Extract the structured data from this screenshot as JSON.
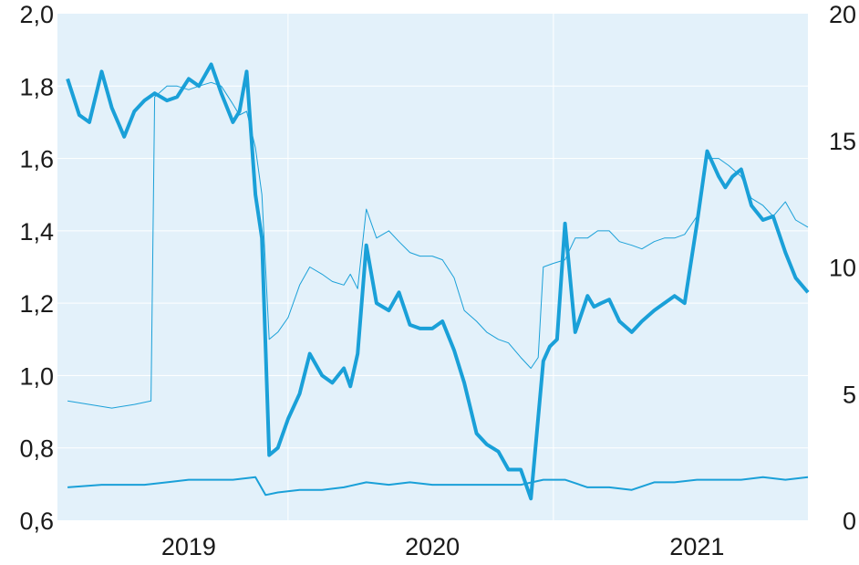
{
  "chart_data": {
    "type": "line",
    "title": "",
    "xlabel": "",
    "ylabel_left": "",
    "ylabel_right": "",
    "x_ticks": [
      "2019",
      "2020",
      "2021"
    ],
    "x_range": [
      "2018-11",
      "2021-09"
    ],
    "y_left": {
      "range": [
        0.6,
        2.0
      ],
      "ticks": [
        "2,0",
        "1,8",
        "1,6",
        "1,4",
        "1,2",
        "1,0",
        "0,8",
        "0,6"
      ]
    },
    "y_right": {
      "range": [
        0,
        20
      ],
      "ticks": [
        "20",
        "15",
        "10",
        "5",
        "0"
      ]
    },
    "grid": true,
    "background": "#e3f1fa",
    "series": [
      {
        "axis": "left",
        "color": "#1aa0d8",
        "width": 4,
        "x": [
          "2018-11-15",
          "2018-12-01",
          "2018-12-15",
          "2019-01-01",
          "2019-01-15",
          "2019-02-01",
          "2019-02-15",
          "2019-03-01",
          "2019-03-15",
          "2019-04-01",
          "2019-04-15",
          "2019-05-01",
          "2019-05-15",
          "2019-06-01",
          "2019-06-15",
          "2019-07-01",
          "2019-07-10",
          "2019-07-20",
          "2019-08-01",
          "2019-08-10",
          "2019-08-20",
          "2019-09-01",
          "2019-09-15",
          "2019-10-01",
          "2019-10-15",
          "2019-11-01",
          "2019-11-15",
          "2019-12-01",
          "2019-12-10",
          "2019-12-20",
          "2020-01-01",
          "2020-01-15",
          "2020-02-01",
          "2020-02-15",
          "2020-03-01",
          "2020-03-15",
          "2020-04-01",
          "2020-04-15",
          "2020-05-01",
          "2020-05-15",
          "2020-06-01",
          "2020-06-15",
          "2020-07-01",
          "2020-07-15",
          "2020-08-01",
          "2020-08-15",
          "2020-09-01",
          "2020-09-10",
          "2020-09-20",
          "2020-10-01",
          "2020-10-15",
          "2020-11-01",
          "2020-11-10",
          "2020-11-20",
          "2020-12-01",
          "2020-12-15",
          "2021-01-01",
          "2021-01-15",
          "2021-02-01",
          "2021-02-15",
          "2021-03-01",
          "2021-03-15",
          "2021-04-01",
          "2021-04-15",
          "2021-05-01",
          "2021-05-10",
          "2021-05-20",
          "2021-06-01",
          "2021-06-15",
          "2021-07-01",
          "2021-07-15",
          "2021-08-01",
          "2021-08-15",
          "2021-09-01"
        ],
        "y": [
          1.82,
          1.72,
          1.7,
          1.84,
          1.74,
          1.66,
          1.73,
          1.76,
          1.78,
          1.76,
          1.77,
          1.82,
          1.8,
          1.86,
          1.78,
          1.7,
          1.73,
          1.84,
          1.5,
          1.38,
          0.78,
          0.8,
          0.88,
          0.95,
          1.06,
          1.0,
          0.98,
          1.02,
          0.97,
          1.06,
          1.36,
          1.2,
          1.18,
          1.23,
          1.14,
          1.13,
          1.13,
          1.15,
          1.07,
          0.98,
          0.84,
          0.81,
          0.79,
          0.74,
          0.74,
          0.66,
          1.04,
          1.08,
          1.1,
          1.42,
          1.12,
          1.22,
          1.19,
          1.2,
          1.21,
          1.15,
          1.12,
          1.15,
          1.18,
          1.2,
          1.22,
          1.2,
          1.42,
          1.62,
          1.55,
          1.52,
          1.55,
          1.57,
          1.47,
          1.43,
          1.44,
          1.34,
          1.27,
          1.23
        ]
      },
      {
        "axis": "left",
        "color": "#1aa0d8",
        "width": 1,
        "x": [
          "2018-11-15",
          "2018-12-15",
          "2019-01-15",
          "2019-02-15",
          "2019-03-10",
          "2019-03-15",
          "2019-04-01",
          "2019-04-15",
          "2019-05-01",
          "2019-05-15",
          "2019-06-01",
          "2019-06-15",
          "2019-07-01",
          "2019-07-10",
          "2019-07-20",
          "2019-08-01",
          "2019-08-10",
          "2019-08-20",
          "2019-09-01",
          "2019-09-15",
          "2019-10-01",
          "2019-10-15",
          "2019-11-01",
          "2019-11-15",
          "2019-12-01",
          "2019-12-10",
          "2019-12-20",
          "2020-01-01",
          "2020-01-15",
          "2020-02-01",
          "2020-02-15",
          "2020-03-01",
          "2020-03-15",
          "2020-04-01",
          "2020-04-15",
          "2020-05-01",
          "2020-05-15",
          "2020-06-01",
          "2020-06-15",
          "2020-07-01",
          "2020-07-15",
          "2020-08-01",
          "2020-08-15",
          "2020-08-25",
          "2020-09-01",
          "2020-09-15",
          "2020-10-01",
          "2020-10-15",
          "2020-11-01",
          "2020-11-15",
          "2020-12-01",
          "2020-12-15",
          "2021-01-01",
          "2021-01-15",
          "2021-02-01",
          "2021-02-15",
          "2021-03-01",
          "2021-03-15",
          "2021-04-01",
          "2021-04-15",
          "2021-05-01",
          "2021-05-15",
          "2021-06-01",
          "2021-06-15",
          "2021-07-01",
          "2021-07-15",
          "2021-08-01",
          "2021-08-15",
          "2021-09-01"
        ],
        "y": [
          0.93,
          0.92,
          0.91,
          0.92,
          0.93,
          1.77,
          1.8,
          1.8,
          1.79,
          1.8,
          1.81,
          1.8,
          1.75,
          1.72,
          1.73,
          1.63,
          1.5,
          1.1,
          1.12,
          1.16,
          1.25,
          1.3,
          1.28,
          1.26,
          1.25,
          1.28,
          1.24,
          1.46,
          1.38,
          1.4,
          1.37,
          1.34,
          1.33,
          1.33,
          1.32,
          1.27,
          1.18,
          1.15,
          1.12,
          1.1,
          1.09,
          1.05,
          1.02,
          1.05,
          1.3,
          1.31,
          1.32,
          1.38,
          1.38,
          1.4,
          1.4,
          1.37,
          1.36,
          1.35,
          1.37,
          1.38,
          1.38,
          1.39,
          1.44,
          1.6,
          1.6,
          1.58,
          1.55,
          1.49,
          1.47,
          1.44,
          1.48,
          1.43,
          1.41
        ]
      },
      {
        "axis": "right",
        "color": "#1aa0d8",
        "width": 2,
        "x": [
          "2018-11-15",
          "2019-01-01",
          "2019-02-01",
          "2019-03-01",
          "2019-04-01",
          "2019-05-01",
          "2019-06-01",
          "2019-07-01",
          "2019-08-01",
          "2019-08-15",
          "2019-09-01",
          "2019-10-01",
          "2019-11-01",
          "2019-12-01",
          "2020-01-01",
          "2020-02-01",
          "2020-03-01",
          "2020-04-01",
          "2020-05-01",
          "2020-06-01",
          "2020-07-01",
          "2020-08-01",
          "2020-09-01",
          "2020-10-01",
          "2020-11-01",
          "2020-12-01",
          "2021-01-01",
          "2021-02-01",
          "2021-03-01",
          "2021-04-01",
          "2021-05-01",
          "2021-06-01",
          "2021-07-01",
          "2021-08-01",
          "2021-09-01"
        ],
        "y": [
          1.3,
          1.4,
          1.4,
          1.4,
          1.5,
          1.6,
          1.6,
          1.6,
          1.7,
          1.0,
          1.1,
          1.2,
          1.2,
          1.3,
          1.5,
          1.4,
          1.5,
          1.4,
          1.4,
          1.4,
          1.4,
          1.4,
          1.6,
          1.6,
          1.3,
          1.3,
          1.2,
          1.5,
          1.5,
          1.6,
          1.6,
          1.6,
          1.7,
          1.6,
          1.7
        ]
      }
    ]
  }
}
